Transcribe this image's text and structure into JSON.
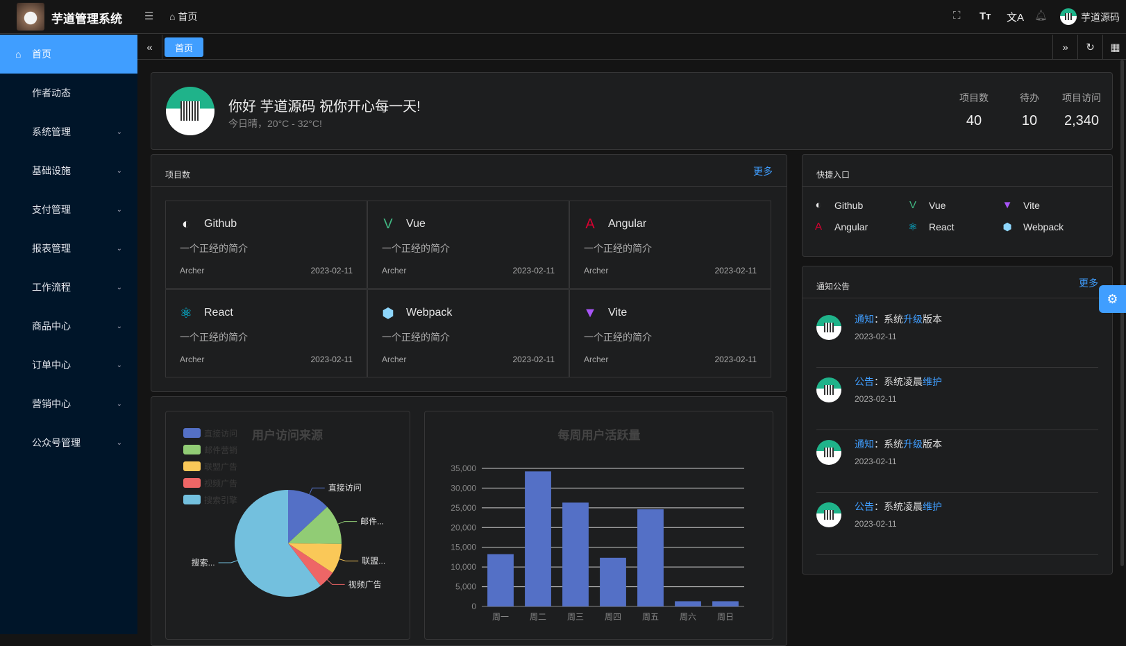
{
  "header": {
    "app_title": "芋道管理系统",
    "breadcrumb": "首页",
    "user_name": "芋道源码"
  },
  "sidebar": {
    "items": [
      {
        "label": "首页",
        "active": true
      },
      {
        "label": "作者动态"
      },
      {
        "label": "系统管理",
        "expandable": true
      },
      {
        "label": "基础设施",
        "expandable": true
      },
      {
        "label": "支付管理",
        "expandable": true
      },
      {
        "label": "报表管理",
        "expandable": true
      },
      {
        "label": "工作流程",
        "expandable": true
      },
      {
        "label": "商品中心",
        "expandable": true
      },
      {
        "label": "订单中心",
        "expandable": true
      },
      {
        "label": "营销中心",
        "expandable": true
      },
      {
        "label": "公众号管理",
        "expandable": true
      }
    ]
  },
  "tabs": [
    {
      "label": "首页",
      "active": true
    }
  ],
  "welcome": {
    "greeting": "你好 芋道源码 祝你开心每一天!",
    "weather": "今日晴，20°C - 32°C!",
    "stats": [
      {
        "label": "项目数",
        "value": "40"
      },
      {
        "label": "待办",
        "value": "10"
      },
      {
        "label": "项目访问",
        "value": "2,340"
      }
    ]
  },
  "projects": {
    "title": "项目数",
    "more": "更多",
    "items": [
      {
        "name": "Github",
        "icon": "github-icon",
        "desc": "一个正经的简介",
        "author": "Archer",
        "date": "2023-02-11"
      },
      {
        "name": "Vue",
        "icon": "vue-icon",
        "desc": "一个正经的简介",
        "author": "Archer",
        "date": "2023-02-11"
      },
      {
        "name": "Angular",
        "icon": "angular-icon",
        "desc": "一个正经的简介",
        "author": "Archer",
        "date": "2023-02-11"
      },
      {
        "name": "React",
        "icon": "react-icon",
        "desc": "一个正经的简介",
        "author": "Archer",
        "date": "2023-02-11"
      },
      {
        "name": "Webpack",
        "icon": "webpack-icon",
        "desc": "一个正经的简介",
        "author": "Archer",
        "date": "2023-02-11"
      },
      {
        "name": "Vite",
        "icon": "vite-icon",
        "desc": "一个正经的简介",
        "author": "Archer",
        "date": "2023-02-11"
      }
    ]
  },
  "shortcuts": {
    "title": "快捷入口",
    "items": [
      {
        "name": "Github",
        "icon": "github-icon"
      },
      {
        "name": "Vue",
        "icon": "vue-icon"
      },
      {
        "name": "Vite",
        "icon": "vite-icon"
      },
      {
        "name": "Angular",
        "icon": "angular-icon"
      },
      {
        "name": "React",
        "icon": "react-icon"
      },
      {
        "name": "Webpack",
        "icon": "webpack-icon"
      }
    ]
  },
  "notices": {
    "title": "通知公告",
    "more": "更多",
    "items": [
      {
        "type": "通知",
        "sep": "：",
        "pre": "系统",
        "hl": "升级",
        "post": "版本",
        "date": "2023-02-11"
      },
      {
        "type": "公告",
        "sep": "：",
        "pre": "系统凌晨",
        "hl": "维护",
        "post": "",
        "date": "2023-02-11"
      },
      {
        "type": "通知",
        "sep": "：",
        "pre": "系统",
        "hl": "升级",
        "post": "版本",
        "date": "2023-02-11"
      },
      {
        "type": "公告",
        "sep": "：",
        "pre": "系统凌晨",
        "hl": "维护",
        "post": "",
        "date": "2023-02-11"
      }
    ]
  },
  "colors": {
    "accent": "#409eff",
    "sidebar_bg": "#001529"
  },
  "chart_data": [
    {
      "type": "pie",
      "title": "用户访问来源",
      "legend_position": "top-left",
      "categories": [
        "直接访问",
        "邮件营销",
        "联盟广告",
        "视频广告",
        "搜索引擎"
      ],
      "slice_labels": [
        "直接访问",
        "邮件...",
        "联盟...",
        "视频广告",
        "搜索..."
      ],
      "values": [
        335,
        310,
        234,
        135,
        1548
      ],
      "colors": [
        "#5470c6",
        "#91cc75",
        "#fac858",
        "#ee6666",
        "#73c0de"
      ]
    },
    {
      "type": "bar",
      "title": "每周用户活跃量",
      "categories": [
        "周一",
        "周二",
        "周三",
        "周四",
        "周五",
        "周六",
        "周日"
      ],
      "values": [
        13253,
        34235,
        26321,
        12340,
        24643,
        1322,
        1324
      ],
      "ylim": [
        0,
        35000
      ],
      "yticks": [
        "0",
        "5,000",
        "10,000",
        "15,000",
        "20,000",
        "25,000",
        "30,000",
        "35,000"
      ],
      "grid": true,
      "color": "#5470c6"
    }
  ]
}
